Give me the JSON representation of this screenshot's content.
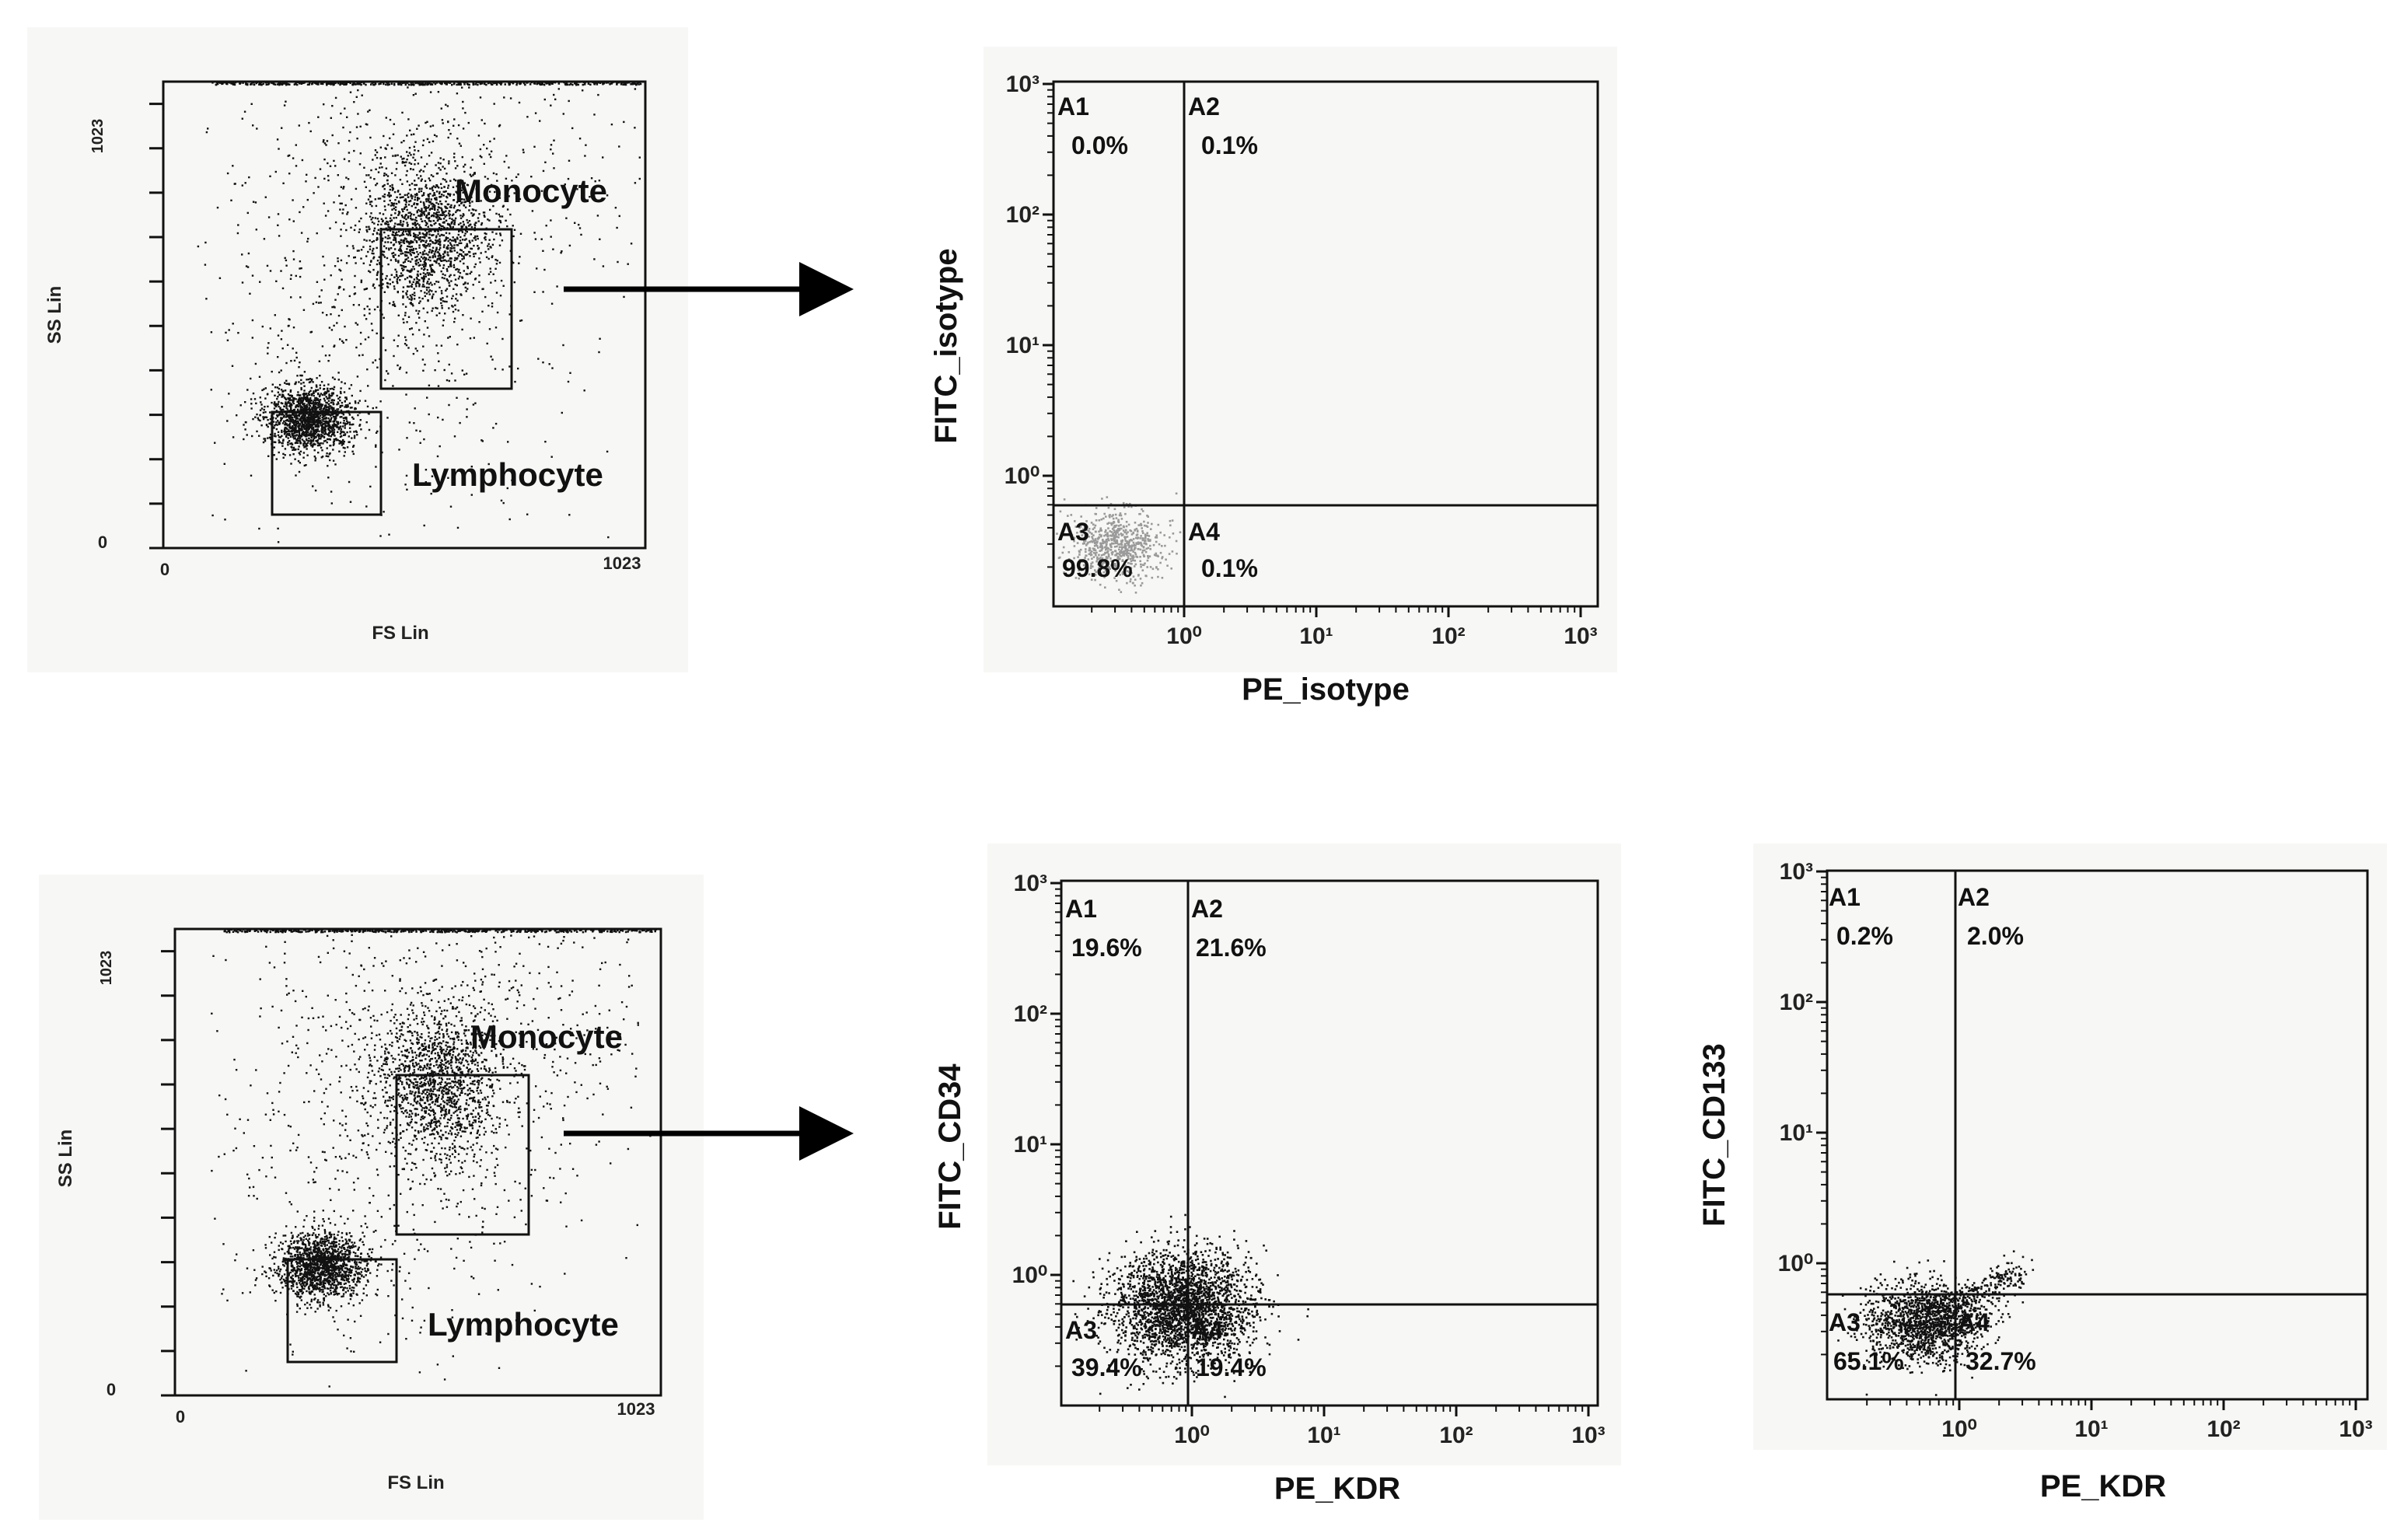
{
  "chart_data": [
    {
      "id": "scatter_top_left",
      "type": "scatter",
      "xlabel": "FS Lin",
      "ylabel": "SS Lin",
      "x_ticks": [
        "0",
        "1023"
      ],
      "y_ticks": [
        "0",
        "1023"
      ],
      "xlim": [
        0,
        1023
      ],
      "ylim": [
        0,
        1023
      ],
      "gates": [
        {
          "label": "Monocyte",
          "x": [
            460,
            760
          ],
          "y": [
            360,
            720
          ]
        },
        {
          "label": "Lymphocyte",
          "x": [
            240,
            480
          ],
          "y": [
            80,
            310
          ]
        }
      ]
    },
    {
      "id": "quad_isotype",
      "type": "scatter",
      "xlabel": "PE_isotype",
      "ylabel": "FITC_isotype",
      "log_scale": true,
      "x_ticks": [
        "10⁰",
        "10¹",
        "10²",
        "10³"
      ],
      "y_ticks": [
        "10⁰",
        "10¹",
        "10²",
        "10³"
      ],
      "quadrants": [
        {
          "name": "A1",
          "percent": "0.0%"
        },
        {
          "name": "A2",
          "percent": "0.1%"
        },
        {
          "name": "A3",
          "percent": "99.8%"
        },
        {
          "name": "A4",
          "percent": "0.1%"
        }
      ]
    },
    {
      "id": "scatter_bottom_left",
      "type": "scatter",
      "xlabel": "FS Lin",
      "ylabel": "SS Lin",
      "x_ticks": [
        "0",
        "1023"
      ],
      "y_ticks": [
        "0",
        "1023"
      ],
      "xlim": [
        0,
        1023
      ],
      "ylim": [
        0,
        1023
      ],
      "gates": [
        {
          "label": "Monocyte",
          "x": [
            460,
            760
          ],
          "y": [
            360,
            720
          ]
        },
        {
          "label": "Lymphocyte",
          "x": [
            240,
            480
          ],
          "y": [
            80,
            310
          ]
        }
      ]
    },
    {
      "id": "quad_cd34",
      "type": "scatter",
      "xlabel": "PE_KDR",
      "ylabel": "FITC_CD34",
      "log_scale": true,
      "x_ticks": [
        "10⁰",
        "10¹",
        "10²",
        "10³"
      ],
      "y_ticks": [
        "10⁰",
        "10¹",
        "10²",
        "10³"
      ],
      "quadrants": [
        {
          "name": "A1",
          "percent": "19.6%"
        },
        {
          "name": "A2",
          "percent": "21.6%"
        },
        {
          "name": "A3",
          "percent": "39.4%"
        },
        {
          "name": "A4",
          "percent": "19.4%"
        }
      ]
    },
    {
      "id": "quad_cd133",
      "type": "scatter",
      "xlabel": "PE_KDR",
      "ylabel": "FITC_CD133",
      "log_scale": true,
      "x_ticks": [
        "10⁰",
        "10¹",
        "10²",
        "10³"
      ],
      "y_ticks": [
        "10⁰",
        "10¹",
        "10²",
        "10³"
      ],
      "quadrants": [
        {
          "name": "A1",
          "percent": "0.2%"
        },
        {
          "name": "A2",
          "percent": "2.0%"
        },
        {
          "name": "A3",
          "percent": "65.1%"
        },
        {
          "name": "A4",
          "percent": "32.7%"
        }
      ]
    }
  ]
}
